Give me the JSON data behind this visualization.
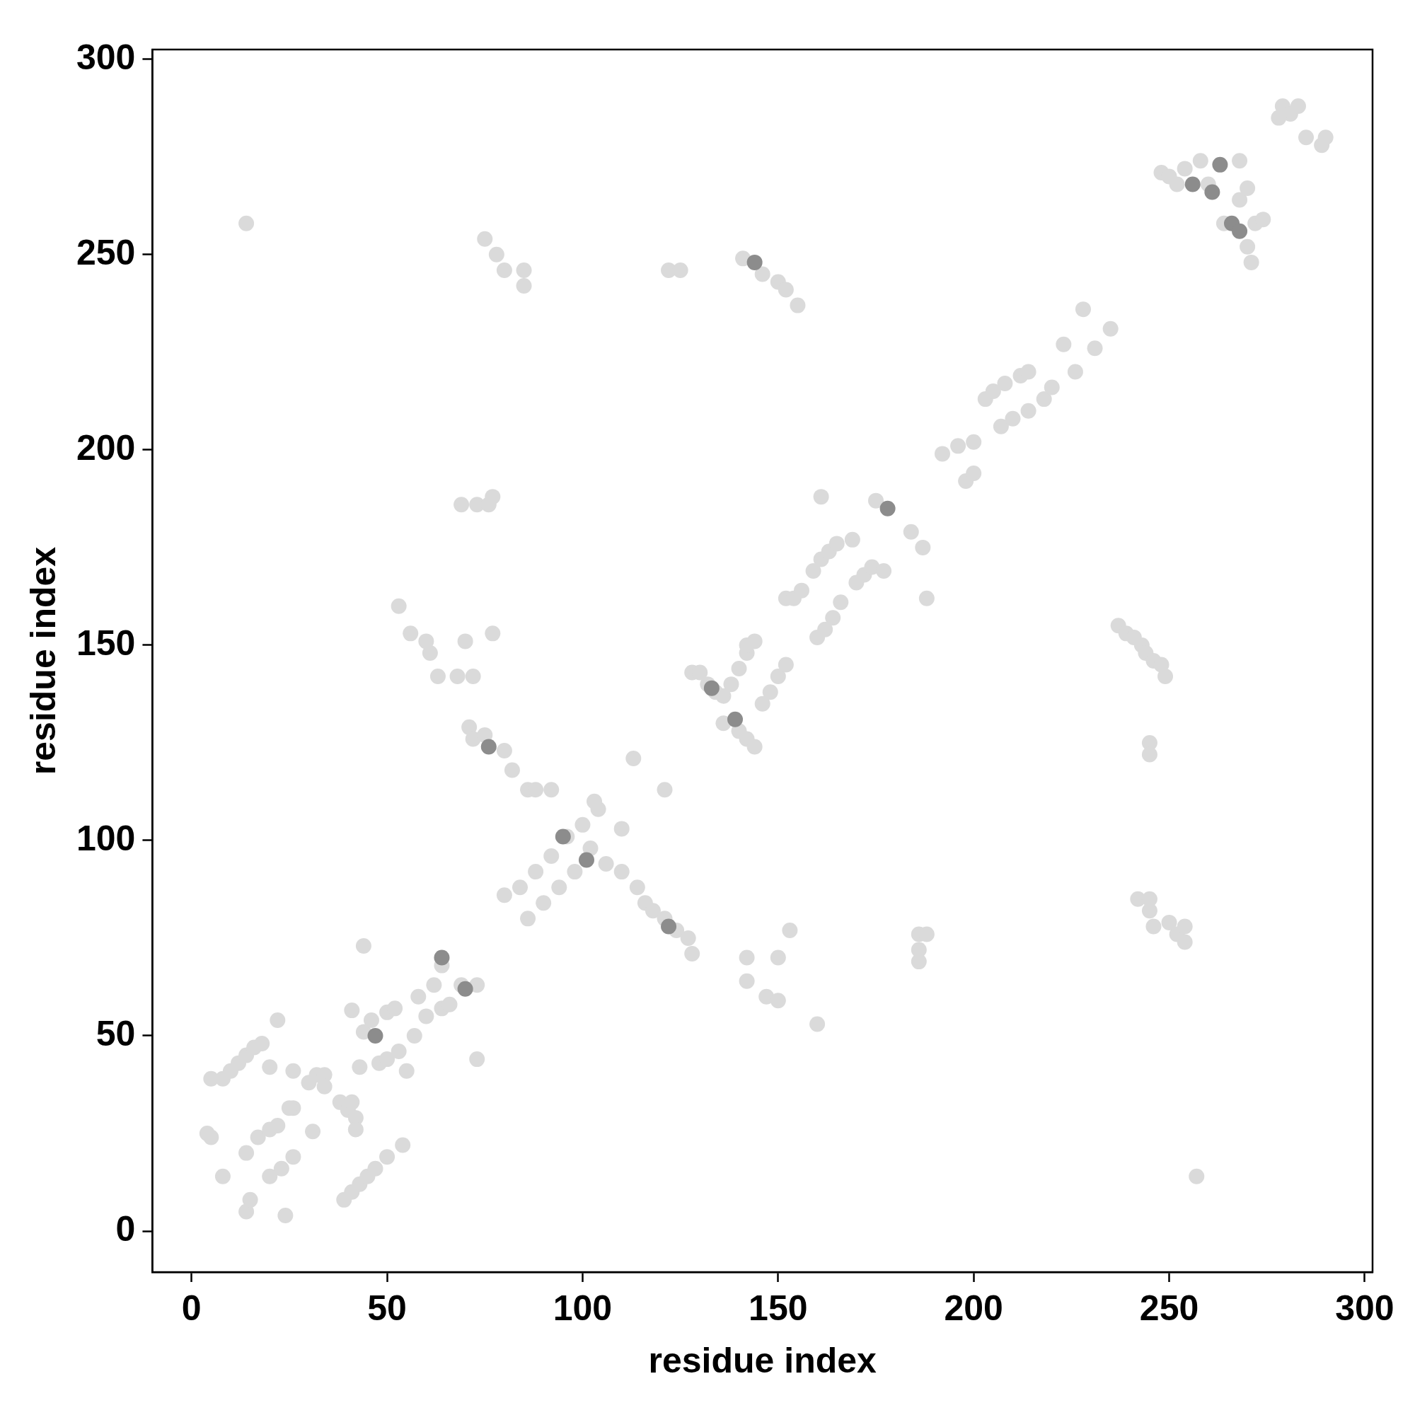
{
  "chart_data": {
    "type": "scatter",
    "xlabel": "residue index",
    "ylabel": "residue index",
    "xlim": [
      -10,
      302
    ],
    "ylim": [
      -10.5,
      302.5
    ],
    "xticks": [
      0,
      50,
      100,
      150,
      200,
      250,
      300
    ],
    "yticks": [
      0,
      50,
      100,
      150,
      200,
      250,
      300
    ],
    "grid": false,
    "legend": false,
    "marker": "circle",
    "series": [
      {
        "color": "#dadada",
        "x": [
          4,
          5,
          8,
          14,
          15,
          14,
          17,
          20,
          22,
          20,
          23,
          26,
          24,
          26,
          25,
          31,
          26,
          30,
          32,
          34,
          34,
          38,
          40,
          41,
          42,
          42,
          39,
          41,
          43,
          45,
          47,
          50,
          54,
          5,
          8,
          10,
          12,
          14,
          16,
          18,
          22,
          20,
          44,
          41,
          44,
          46,
          50,
          52,
          43,
          48,
          50,
          55,
          57,
          53,
          58,
          62,
          64,
          60,
          64,
          66,
          69,
          73,
          73,
          53,
          56,
          60,
          61,
          63,
          68,
          72,
          70,
          77,
          69,
          73,
          76,
          77,
          14,
          75,
          78,
          80,
          85,
          85,
          122,
          125,
          141,
          146,
          150,
          152,
          155,
          71,
          72,
          75,
          80,
          82,
          86,
          88,
          92,
          110,
          114,
          116,
          118,
          121,
          124,
          127,
          128,
          113,
          121,
          80,
          84,
          88,
          92,
          96,
          100,
          104,
          103,
          86,
          90,
          94,
          98,
          102,
          106,
          110,
          142,
          142,
          150,
          147,
          150,
          153,
          160,
          186,
          186,
          186,
          188,
          128,
          130,
          132,
          134,
          136,
          138,
          140,
          142,
          144,
          136,
          140,
          142,
          144,
          146,
          148,
          150,
          152,
          142,
          152,
          154,
          156,
          159,
          161,
          163,
          165,
          169,
          160,
          162,
          164,
          166,
          170,
          172,
          174,
          177,
          161,
          175,
          184,
          187,
          188,
          192,
          196,
          200,
          203,
          205,
          208,
          212,
          214,
          223,
          228,
          198,
          200,
          207,
          210,
          214,
          218,
          220,
          226,
          231,
          235,
          237,
          239,
          241,
          243,
          244,
          246,
          248,
          249,
          245,
          245,
          242,
          245,
          245,
          246,
          250,
          252,
          254,
          254,
          257,
          248,
          250,
          252,
          254,
          258,
          260,
          264,
          270,
          271,
          272,
          274,
          268,
          270,
          268,
          279,
          281,
          283,
          278,
          285,
          289,
          290
        ],
        "values": [
          25,
          24,
          14,
          5,
          8,
          20,
          24,
          26,
          27,
          14,
          16,
          19,
          4,
          31.5,
          31.5,
          25.5,
          41,
          38,
          40,
          40,
          37,
          33,
          31,
          33,
          29,
          26,
          8,
          10,
          12,
          14,
          16,
          19,
          22,
          39,
          39,
          41,
          43,
          45,
          47,
          48,
          54,
          42,
          73,
          56.5,
          51,
          54,
          56,
          57,
          42,
          43,
          44,
          41,
          50,
          46,
          60,
          63,
          68,
          55,
          57,
          58,
          63,
          63,
          44,
          160,
          153,
          151,
          148,
          142,
          142,
          142,
          151,
          153,
          186,
          186,
          186,
          188,
          258,
          254,
          250,
          246,
          246,
          242,
          246,
          246,
          249,
          245,
          243,
          241,
          237,
          129,
          126,
          127,
          123,
          118,
          113,
          113,
          113,
          92,
          88,
          84,
          82,
          80,
          77,
          75,
          71,
          121,
          113,
          86,
          88,
          92,
          96,
          101,
          104,
          108,
          110,
          80,
          84,
          88,
          92,
          98,
          94,
          103,
          70,
          64,
          70,
          60,
          59,
          77,
          53,
          76,
          72,
          69,
          76,
          143,
          143,
          140,
          138,
          137,
          140,
          144,
          148,
          151,
          130,
          128,
          126,
          124,
          135,
          138,
          142,
          145,
          150,
          162,
          162,
          164,
          169,
          172,
          174,
          176,
          177,
          152,
          154,
          157,
          161,
          166,
          168,
          170,
          169,
          188,
          187,
          179,
          175,
          162,
          199,
          201,
          202,
          213,
          215,
          217,
          219,
          220,
          227,
          236,
          192,
          194,
          206,
          208,
          210,
          213,
          216,
          220,
          226,
          231,
          155,
          153,
          152,
          150,
          148,
          146,
          145,
          142,
          125,
          122,
          85,
          85,
          82,
          78,
          79,
          76,
          78,
          74,
          14,
          271,
          270,
          268,
          272,
          274,
          268,
          258,
          252,
          248,
          258,
          259,
          264,
          267,
          274,
          288,
          286,
          288,
          285,
          280,
          278,
          280
        ]
      },
      {
        "color": "#8c8c8c",
        "x": [
          64,
          70,
          95,
          101,
          139,
          133,
          178,
          256,
          261,
          266,
          268,
          144,
          76,
          122,
          47,
          263
        ],
        "values": [
          70,
          62,
          101,
          95,
          131,
          139,
          185,
          268,
          266,
          258,
          256,
          248,
          124,
          78,
          50,
          273
        ]
      }
    ]
  }
}
